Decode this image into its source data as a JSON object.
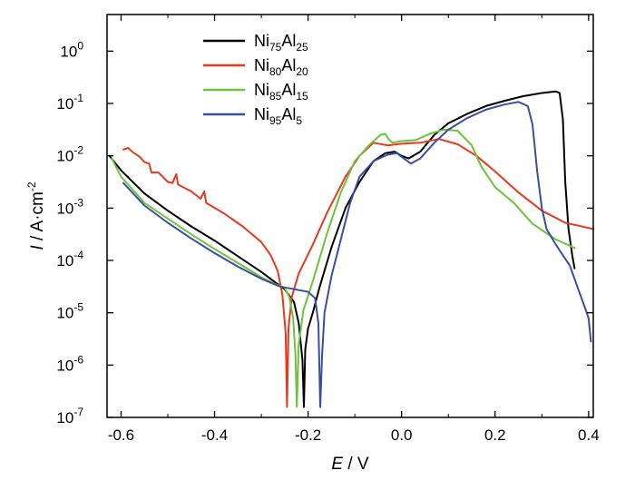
{
  "chart_data": {
    "type": "line",
    "title": "",
    "xlabel": {
      "italic": "E",
      "rest": " / V"
    },
    "ylabel": {
      "italic": "I",
      "rest": " / A·cm",
      "sup": "-2"
    },
    "xlim": [
      -0.63,
      0.41
    ],
    "ylim_log10": [
      -7,
      0.7
    ],
    "y_scale": "log",
    "x_ticks": [
      {
        "value": -0.6,
        "label": "-0.6"
      },
      {
        "value": -0.4,
        "label": "-0.4"
      },
      {
        "value": -0.2,
        "label": "-0.2"
      },
      {
        "value": 0.0,
        "label": "0.0"
      },
      {
        "value": 0.2,
        "label": "0.2"
      },
      {
        "value": 0.4,
        "label": "0.4"
      }
    ],
    "y_ticks": [
      {
        "exp": 0,
        "label": "10",
        "sup": "0"
      },
      {
        "exp": -1,
        "label": "10",
        "sup": "-1"
      },
      {
        "exp": -2,
        "label": "10",
        "sup": "-2"
      },
      {
        "exp": -3,
        "label": "10",
        "sup": "-3"
      },
      {
        "exp": -4,
        "label": "10",
        "sup": "-4"
      },
      {
        "exp": -5,
        "label": "10",
        "sup": "-5"
      },
      {
        "exp": -6,
        "label": "10",
        "sup": "-6"
      },
      {
        "exp": -7,
        "label": "10",
        "sup": "-7"
      }
    ],
    "legend_position": "top-left",
    "series": [
      {
        "name": {
          "base1": "Ni",
          "sub1": "75",
          "base2": "Al",
          "sub2": "25"
        },
        "color": "#000000",
        "points": [
          [
            -0.625,
            -2.0
          ],
          [
            -0.6,
            -2.28
          ],
          [
            -0.55,
            -2.72
          ],
          [
            -0.5,
            -3.05
          ],
          [
            -0.45,
            -3.35
          ],
          [
            -0.4,
            -3.62
          ],
          [
            -0.35,
            -3.92
          ],
          [
            -0.3,
            -4.22
          ],
          [
            -0.27,
            -4.42
          ],
          [
            -0.25,
            -4.55
          ],
          [
            -0.23,
            -4.8
          ],
          [
            -0.22,
            -5.2
          ],
          [
            -0.212,
            -5.9
          ],
          [
            -0.209,
            -6.8
          ],
          [
            -0.206,
            -5.7
          ],
          [
            -0.2,
            -5.3
          ],
          [
            -0.19,
            -5.0
          ],
          [
            -0.175,
            -4.5
          ],
          [
            -0.15,
            -3.75
          ],
          [
            -0.12,
            -3.0
          ],
          [
            -0.09,
            -2.5
          ],
          [
            -0.06,
            -2.1
          ],
          [
            -0.035,
            -1.95
          ],
          [
            -0.015,
            -1.92
          ],
          [
            0.0,
            -2.0
          ],
          [
            0.015,
            -2.05
          ],
          [
            0.04,
            -1.92
          ],
          [
            0.07,
            -1.6
          ],
          [
            0.1,
            -1.38
          ],
          [
            0.14,
            -1.2
          ],
          [
            0.18,
            -1.05
          ],
          [
            0.22,
            -0.95
          ],
          [
            0.26,
            -0.86
          ],
          [
            0.3,
            -0.8
          ],
          [
            0.33,
            -0.77
          ],
          [
            0.338,
            -0.8
          ],
          [
            0.345,
            -1.3
          ],
          [
            0.35,
            -2.5
          ],
          [
            0.357,
            -3.4
          ],
          [
            0.365,
            -3.9
          ],
          [
            0.37,
            -4.15
          ]
        ]
      },
      {
        "name": {
          "base1": "Ni",
          "sub1": "80",
          "base2": "Al",
          "sub2": "20"
        },
        "color": "#e8391e",
        "points": [
          [
            -0.595,
            -1.88
          ],
          [
            -0.585,
            -1.85
          ],
          [
            -0.575,
            -1.93
          ],
          [
            -0.56,
            -2.02
          ],
          [
            -0.55,
            -2.12
          ],
          [
            -0.54,
            -2.15
          ],
          [
            -0.535,
            -2.32
          ],
          [
            -0.52,
            -2.32
          ],
          [
            -0.5,
            -2.5
          ],
          [
            -0.49,
            -2.52
          ],
          [
            -0.482,
            -2.35
          ],
          [
            -0.478,
            -2.55
          ],
          [
            -0.45,
            -2.68
          ],
          [
            -0.43,
            -2.82
          ],
          [
            -0.422,
            -2.68
          ],
          [
            -0.418,
            -2.9
          ],
          [
            -0.38,
            -3.1
          ],
          [
            -0.34,
            -3.35
          ],
          [
            -0.3,
            -3.65
          ],
          [
            -0.28,
            -3.9
          ],
          [
            -0.265,
            -4.2
          ],
          [
            -0.255,
            -4.65
          ],
          [
            -0.248,
            -5.4
          ],
          [
            -0.245,
            -6.8
          ],
          [
            -0.242,
            -5.3
          ],
          [
            -0.235,
            -4.7
          ],
          [
            -0.22,
            -4.25
          ],
          [
            -0.19,
            -3.7
          ],
          [
            -0.16,
            -3.1
          ],
          [
            -0.12,
            -2.4
          ],
          [
            -0.09,
            -2.0
          ],
          [
            -0.06,
            -1.75
          ],
          [
            -0.03,
            -1.8
          ],
          [
            0.0,
            -1.77
          ],
          [
            0.04,
            -1.75
          ],
          [
            0.08,
            -1.68
          ],
          [
            0.12,
            -1.78
          ],
          [
            0.16,
            -2.0
          ],
          [
            0.2,
            -2.3
          ],
          [
            0.25,
            -2.7
          ],
          [
            0.3,
            -3.05
          ],
          [
            0.35,
            -3.28
          ],
          [
            0.41,
            -3.4
          ]
        ]
      },
      {
        "name": {
          "base1": "Ni",
          "sub1": "85",
          "base2": "Al",
          "sub2": "15"
        },
        "color": "#6bc43c",
        "points": [
          [
            -0.62,
            -2.05
          ],
          [
            -0.6,
            -2.4
          ],
          [
            -0.55,
            -2.9
          ],
          [
            -0.5,
            -3.2
          ],
          [
            -0.45,
            -3.5
          ],
          [
            -0.4,
            -3.78
          ],
          [
            -0.35,
            -4.05
          ],
          [
            -0.3,
            -4.32
          ],
          [
            -0.27,
            -4.45
          ],
          [
            -0.25,
            -4.52
          ],
          [
            -0.24,
            -4.7
          ],
          [
            -0.232,
            -5.1
          ],
          [
            -0.227,
            -5.8
          ],
          [
            -0.224,
            -6.8
          ],
          [
            -0.22,
            -5.6
          ],
          [
            -0.21,
            -4.95
          ],
          [
            -0.19,
            -4.4
          ],
          [
            -0.16,
            -3.5
          ],
          [
            -0.13,
            -2.7
          ],
          [
            -0.1,
            -2.1
          ],
          [
            -0.07,
            -1.8
          ],
          [
            -0.045,
            -1.6
          ],
          [
            -0.035,
            -1.58
          ],
          [
            -0.028,
            -1.68
          ],
          [
            -0.02,
            -1.75
          ],
          [
            0.0,
            -1.72
          ],
          [
            0.03,
            -1.7
          ],
          [
            0.06,
            -1.58
          ],
          [
            0.09,
            -1.5
          ],
          [
            0.12,
            -1.52
          ],
          [
            0.15,
            -1.8
          ],
          [
            0.17,
            -2.2
          ],
          [
            0.2,
            -2.6
          ],
          [
            0.24,
            -2.9
          ],
          [
            0.28,
            -3.3
          ],
          [
            0.33,
            -3.6
          ],
          [
            0.37,
            -3.76
          ]
        ]
      },
      {
        "name": {
          "base1": "Ni",
          "sub1": "95",
          "base2": "Al",
          "sub2": "5"
        },
        "color": "#3a4fa0",
        "points": [
          [
            -0.595,
            -2.52
          ],
          [
            -0.55,
            -2.95
          ],
          [
            -0.5,
            -3.28
          ],
          [
            -0.45,
            -3.58
          ],
          [
            -0.4,
            -3.86
          ],
          [
            -0.35,
            -4.12
          ],
          [
            -0.3,
            -4.35
          ],
          [
            -0.26,
            -4.5
          ],
          [
            -0.23,
            -4.55
          ],
          [
            -0.2,
            -4.6
          ],
          [
            -0.185,
            -4.72
          ],
          [
            -0.178,
            -5.2
          ],
          [
            -0.174,
            -6.8
          ],
          [
            -0.17,
            -5.8
          ],
          [
            -0.165,
            -5.0
          ],
          [
            -0.15,
            -4.3
          ],
          [
            -0.13,
            -3.6
          ],
          [
            -0.11,
            -2.9
          ],
          [
            -0.09,
            -2.4
          ],
          [
            -0.06,
            -2.1
          ],
          [
            -0.03,
            -1.98
          ],
          [
            -0.01,
            -1.95
          ],
          [
            0.0,
            -2.02
          ],
          [
            0.02,
            -2.15
          ],
          [
            0.04,
            -2.05
          ],
          [
            0.07,
            -1.75
          ],
          [
            0.1,
            -1.5
          ],
          [
            0.14,
            -1.28
          ],
          [
            0.18,
            -1.12
          ],
          [
            0.22,
            -1.02
          ],
          [
            0.25,
            -0.97
          ],
          [
            0.27,
            -1.05
          ],
          [
            0.28,
            -1.4
          ],
          [
            0.29,
            -2.3
          ],
          [
            0.3,
            -3.0
          ],
          [
            0.31,
            -3.4
          ],
          [
            0.33,
            -3.7
          ],
          [
            0.36,
            -4.1
          ],
          [
            0.38,
            -4.6
          ],
          [
            0.39,
            -4.85
          ],
          [
            0.4,
            -5.1
          ],
          [
            0.405,
            -5.55
          ]
        ]
      }
    ]
  }
}
